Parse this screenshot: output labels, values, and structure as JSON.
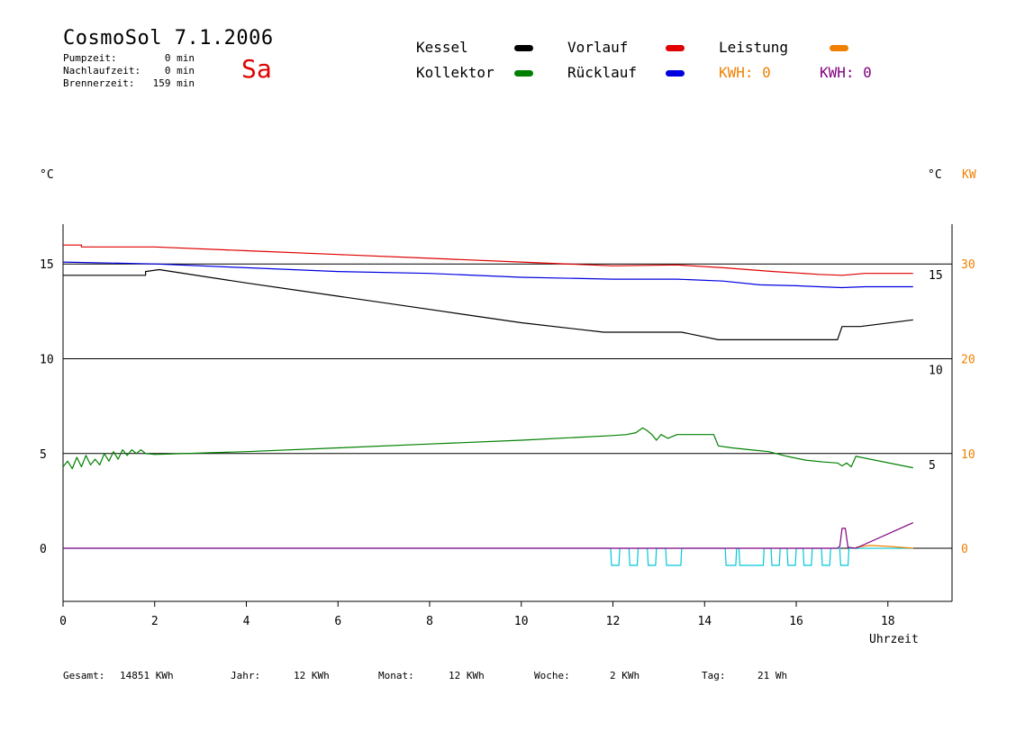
{
  "header": {
    "title": "CosmoSol 7.1.2006",
    "day": "Sa",
    "stats": [
      {
        "label": "Pumpzeit:",
        "value": "0 min"
      },
      {
        "label": "Nachlaufzeit:",
        "value": "0 min"
      },
      {
        "label": "Brennerzeit:",
        "value": "159 min"
      }
    ]
  },
  "legend": {
    "items": [
      {
        "label": "Kessel",
        "color": "#000000"
      },
      {
        "label": "Kollektor",
        "color": "#008000"
      },
      {
        "label": "Vorlauf",
        "color": "#e00000"
      },
      {
        "label": "Rücklauf",
        "color": "#0000e0"
      },
      {
        "label": "Leistung",
        "color": "#f08000"
      }
    ],
    "kwh_orange": "KWH: 0",
    "kwh_purple": "KWH: 0"
  },
  "units": {
    "left": "°C",
    "right_c": "°C",
    "right_kw": "KW"
  },
  "footer": {
    "gesamt_label": "Gesamt:",
    "gesamt_value": "14851 KWh",
    "jahr_label": "Jahr:",
    "jahr_value": "12 KWh",
    "monat_label": "Monat:",
    "monat_value": "12 KWh",
    "woche_label": "Woche:",
    "woche_value": "2 KWh",
    "tag_label": "Tag:",
    "tag_value": "21 Wh"
  },
  "chart_data": {
    "type": "line",
    "xlabel": "Uhrzeit",
    "xlim": [
      0,
      19.4
    ],
    "xticks": [
      0,
      2,
      4,
      6,
      8,
      10,
      12,
      14,
      16,
      18
    ],
    "ylim": [
      -2.8,
      17.1
    ],
    "yticks_left": [
      0,
      5,
      10,
      15
    ],
    "yticks_right_c": [
      5,
      10,
      15
    ],
    "yticks_right_kw": [
      0,
      10,
      20,
      30
    ],
    "kw_per_c": 2,
    "colors": {
      "accent_panel": "#00c8d8",
      "power": "#f08000",
      "energy": "#800080"
    },
    "series": [
      {
        "name": "Vorlauf",
        "color": "#e00000",
        "points": [
          [
            0,
            16.0
          ],
          [
            0.4,
            16.0
          ],
          [
            0.4,
            15.9
          ],
          [
            2,
            15.9
          ],
          [
            4,
            15.7
          ],
          [
            6,
            15.5
          ],
          [
            8,
            15.3
          ],
          [
            10,
            15.1
          ],
          [
            12,
            14.9
          ],
          [
            13.4,
            14.95
          ],
          [
            14.4,
            14.8
          ],
          [
            15.5,
            14.6
          ],
          [
            16.5,
            14.45
          ],
          [
            17.0,
            14.4
          ],
          [
            17.5,
            14.5
          ],
          [
            18.55,
            14.5
          ]
        ]
      },
      {
        "name": "Rücklauf",
        "color": "#0000e0",
        "points": [
          [
            0,
            15.1
          ],
          [
            2,
            15.0
          ],
          [
            4,
            14.8
          ],
          [
            6,
            14.6
          ],
          [
            8,
            14.5
          ],
          [
            10,
            14.3
          ],
          [
            12,
            14.2
          ],
          [
            13.4,
            14.2
          ],
          [
            14.4,
            14.1
          ],
          [
            15.2,
            13.9
          ],
          [
            16.0,
            13.85
          ],
          [
            16.5,
            13.8
          ],
          [
            17.0,
            13.75
          ],
          [
            17.5,
            13.8
          ],
          [
            18.55,
            13.8
          ]
        ]
      },
      {
        "name": "Kessel",
        "color": "#000000",
        "points": [
          [
            0,
            14.4
          ],
          [
            1.8,
            14.4
          ],
          [
            1.8,
            14.6
          ],
          [
            2.1,
            14.7
          ],
          [
            4,
            14.0
          ],
          [
            6,
            13.3
          ],
          [
            8,
            12.6
          ],
          [
            10,
            11.9
          ],
          [
            11.8,
            11.4
          ],
          [
            13.5,
            11.4
          ],
          [
            14.3,
            11.0
          ],
          [
            16.0,
            11.0
          ],
          [
            16.9,
            11.0
          ],
          [
            17.0,
            11.7
          ],
          [
            17.4,
            11.7
          ],
          [
            18.55,
            12.05
          ]
        ]
      },
      {
        "name": "Kollektor",
        "color": "#008000",
        "points": [
          [
            0,
            4.3
          ],
          [
            0.1,
            4.6
          ],
          [
            0.2,
            4.2
          ],
          [
            0.3,
            4.8
          ],
          [
            0.4,
            4.3
          ],
          [
            0.5,
            4.9
          ],
          [
            0.6,
            4.4
          ],
          [
            0.7,
            4.7
          ],
          [
            0.8,
            4.4
          ],
          [
            0.9,
            5.0
          ],
          [
            1.0,
            4.6
          ],
          [
            1.1,
            5.1
          ],
          [
            1.2,
            4.7
          ],
          [
            1.3,
            5.2
          ],
          [
            1.4,
            4.9
          ],
          [
            1.5,
            5.2
          ],
          [
            1.6,
            5.0
          ],
          [
            1.7,
            5.2
          ],
          [
            1.8,
            5.0
          ],
          [
            2.0,
            4.95
          ],
          [
            4,
            5.1
          ],
          [
            6,
            5.3
          ],
          [
            8,
            5.5
          ],
          [
            10,
            5.7
          ],
          [
            12,
            5.95
          ],
          [
            12.3,
            6.0
          ],
          [
            12.5,
            6.1
          ],
          [
            12.65,
            6.35
          ],
          [
            12.75,
            6.2
          ],
          [
            12.85,
            6.0
          ],
          [
            12.95,
            5.7
          ],
          [
            13.05,
            6.0
          ],
          [
            13.2,
            5.8
          ],
          [
            13.4,
            6.0
          ],
          [
            14.2,
            6.0
          ],
          [
            14.3,
            5.4
          ],
          [
            14.6,
            5.3
          ],
          [
            15.0,
            5.2
          ],
          [
            15.4,
            5.1
          ],
          [
            15.8,
            4.85
          ],
          [
            16.2,
            4.65
          ],
          [
            16.6,
            4.55
          ],
          [
            16.9,
            4.5
          ],
          [
            17.0,
            4.35
          ],
          [
            17.1,
            4.5
          ],
          [
            17.2,
            4.3
          ],
          [
            17.3,
            4.85
          ],
          [
            18.55,
            4.25
          ]
        ]
      },
      {
        "name": "Leistung",
        "color": "#f08000",
        "points": [
          [
            17.3,
            0.05
          ],
          [
            17.6,
            0.15
          ],
          [
            18.0,
            0.1
          ],
          [
            18.55,
            0.0
          ]
        ]
      },
      {
        "name": "KWH",
        "color": "#800080",
        "points": [
          [
            0,
            0.0
          ],
          [
            16.9,
            0.0
          ],
          [
            16.95,
            0.1
          ],
          [
            17.0,
            1.05
          ],
          [
            17.07,
            1.05
          ],
          [
            17.13,
            0.05
          ],
          [
            17.3,
            0.0
          ],
          [
            18.55,
            1.35
          ]
        ]
      }
    ],
    "panel_pulses": [
      [
        11.95,
        12.15
      ],
      [
        12.35,
        12.55
      ],
      [
        12.75,
        12.95
      ],
      [
        13.15,
        13.5
      ],
      [
        14.45,
        14.7
      ],
      [
        14.75,
        15.3
      ],
      [
        15.45,
        15.65
      ],
      [
        15.8,
        16.0
      ],
      [
        16.15,
        16.35
      ],
      [
        16.55,
        16.75
      ],
      [
        16.95,
        17.15
      ]
    ],
    "panel_baseline": 0.0,
    "panel_pulse_low": -0.9
  }
}
